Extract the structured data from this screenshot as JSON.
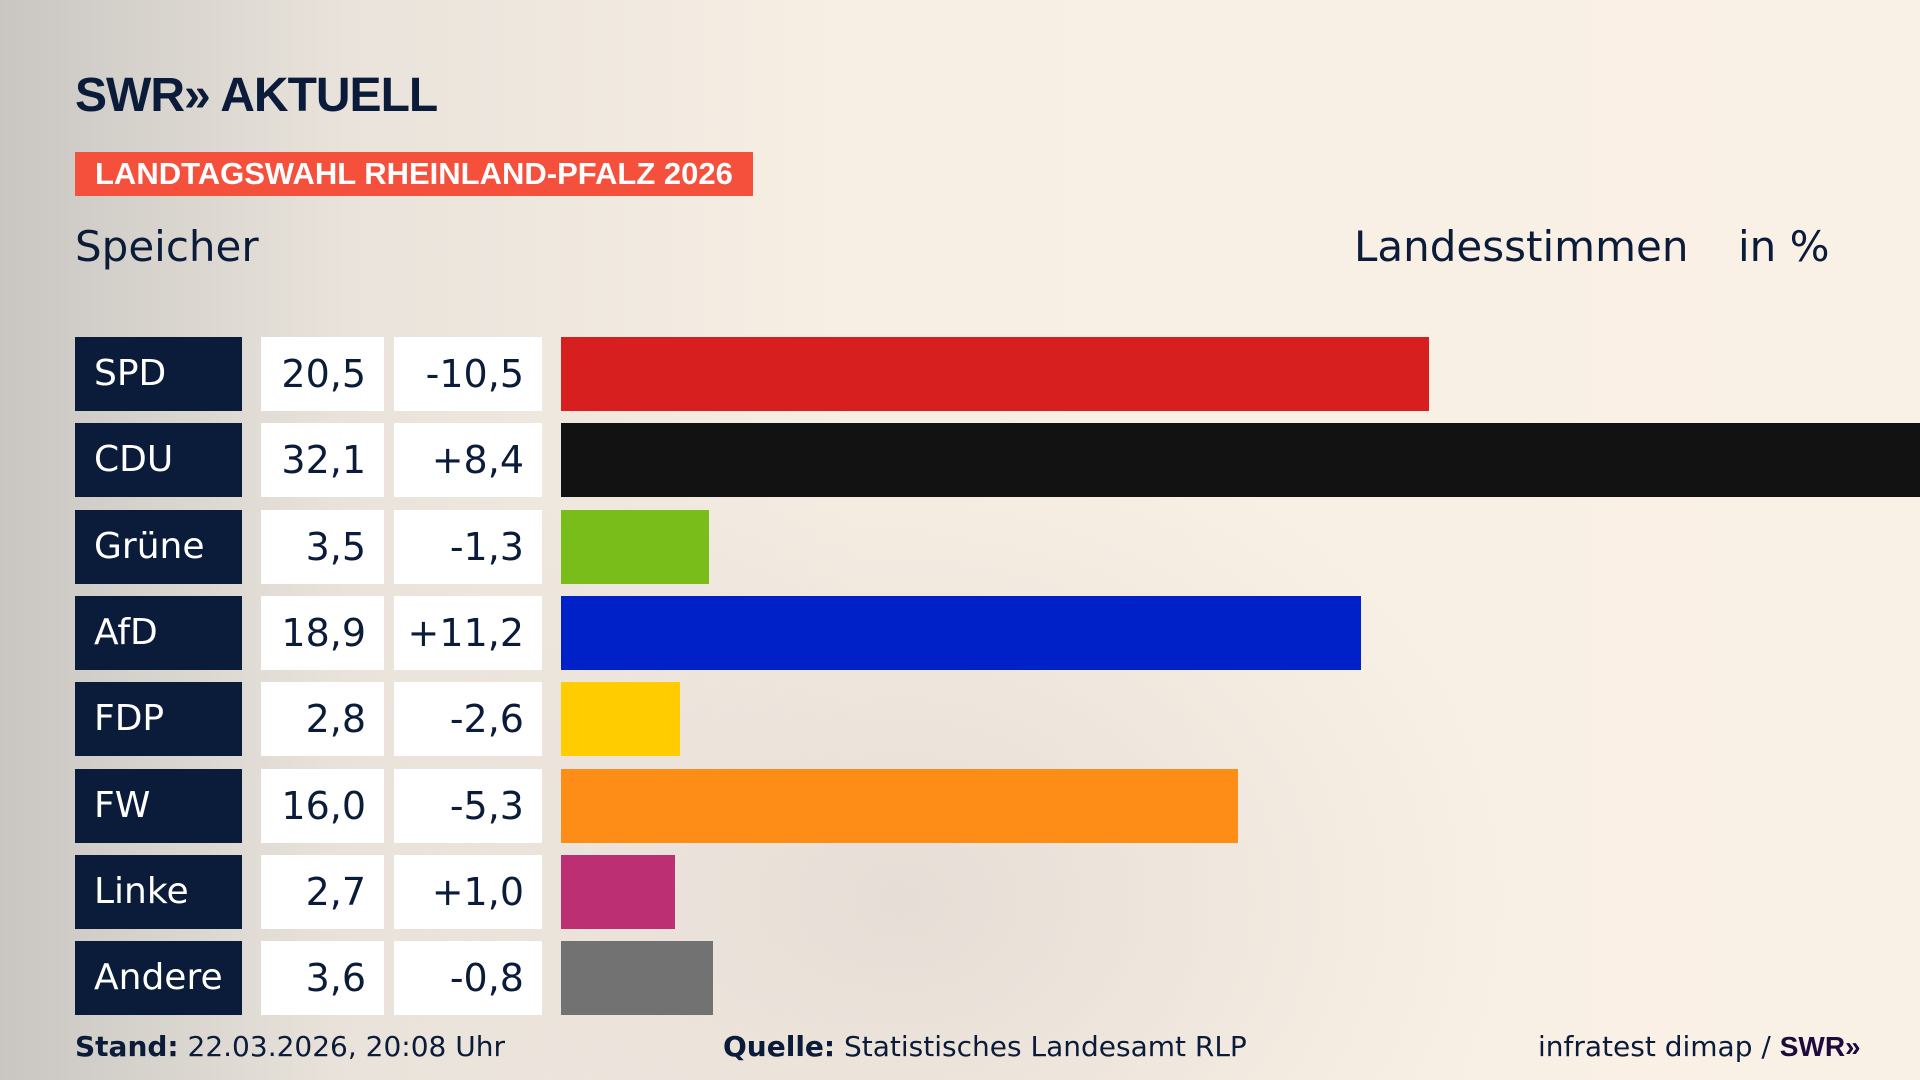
{
  "header": {
    "logo": "SWR» AKTUELL",
    "tag": "LANDTAGSWAHL RHEINLAND-PFALZ 2026",
    "place": "Speicher",
    "metric": "Landesstimmen",
    "unit": "in %"
  },
  "chart_data": {
    "type": "bar",
    "orientation": "horizontal",
    "xlim": [
      0,
      32.1
    ],
    "grid": false,
    "categories": [
      "SPD",
      "CDU",
      "Grüne",
      "AfD",
      "FDP",
      "FW",
      "Linke",
      "Andere"
    ],
    "values": [
      20.5,
      32.1,
      3.5,
      18.9,
      2.8,
      16.0,
      2.7,
      3.6
    ],
    "value_labels": [
      "20,5",
      "32,1",
      "3,5",
      "18,9",
      "2,8",
      "16,0",
      "2,7",
      "3,6"
    ],
    "diff_labels": [
      "-10,5",
      "+8,4",
      "-1,3",
      "+11,2",
      "-2,6",
      "-5,3",
      "+1,0",
      "-0,8"
    ],
    "diffs": [
      -10.5,
      8.4,
      -1.3,
      11.2,
      -2.6,
      -5.3,
      1.0,
      -0.8
    ],
    "colors": [
      "#d71f20",
      "#121212",
      "#79bd1b",
      "#0021c8",
      "#ffcc00",
      "#fd8d17",
      "#bd2f73",
      "#727272"
    ]
  },
  "footer": {
    "stand_label": "Stand:",
    "stand_value": "22.03.2026, 20:08 Uhr",
    "source_label": "Quelle:",
    "source_value": "Statistisches Landesamt RLP",
    "credit": "infratest dimap / ",
    "credit_logo": "SWR»"
  }
}
